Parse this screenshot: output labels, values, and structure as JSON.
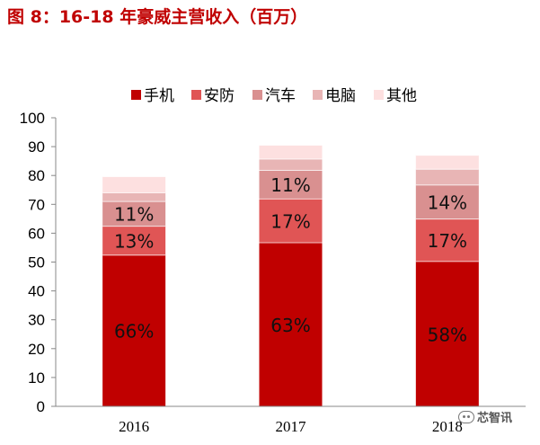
{
  "title": "图 8：16-18 年豪威主营收入（百万）",
  "watermark": "芯智讯",
  "colors": {
    "title": "#c00000",
    "series": [
      "#c00000",
      "#e05555",
      "#d99090",
      "#e8b5b5",
      "#fde0e0"
    ]
  },
  "chart_data": {
    "type": "bar",
    "stacked": true,
    "categories": [
      "2016",
      "2017",
      "2018"
    ],
    "series": [
      {
        "name": "手机",
        "values": [
          52.5,
          56.8,
          50.3
        ],
        "labels": [
          "66%",
          "63%",
          "58%"
        ]
      },
      {
        "name": "安防",
        "values": [
          10.0,
          15.2,
          14.7
        ],
        "labels": [
          "13%",
          "17%",
          "17%"
        ]
      },
      {
        "name": "汽车",
        "values": [
          8.6,
          9.9,
          11.8
        ],
        "labels": [
          "11%",
          "11%",
          "14%"
        ]
      },
      {
        "name": "电脑",
        "values": [
          3.0,
          3.9,
          5.5
        ],
        "labels": [
          "",
          "",
          ""
        ]
      },
      {
        "name": "其他",
        "values": [
          5.6,
          4.8,
          4.8
        ],
        "labels": [
          "",
          "",
          ""
        ]
      }
    ],
    "yticks": [
      0,
      10,
      20,
      30,
      40,
      50,
      60,
      70,
      80,
      90,
      100
    ],
    "ylim": [
      0,
      100
    ],
    "legend_position": "top",
    "grid": false
  }
}
